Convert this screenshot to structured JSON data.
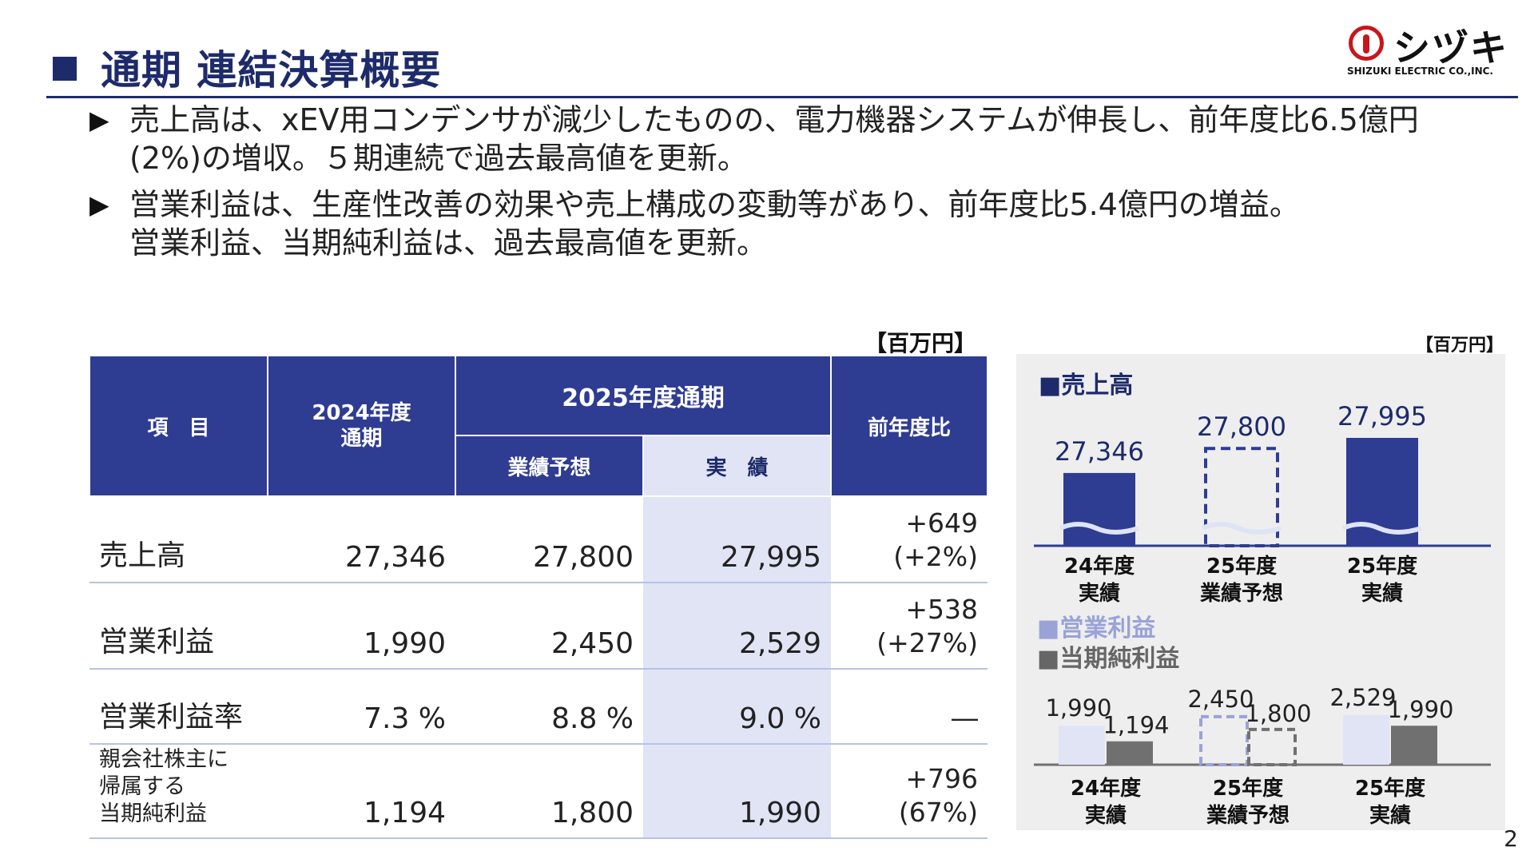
{
  "header": {
    "title": "通期 連結決算概要",
    "logo_brand": "シヅキ",
    "logo_sub": "SHIZUKI ELECTRIC CO.,INC."
  },
  "bullets": [
    {
      "marker": "▶",
      "lines": [
        "売上高は、xEV用コンデンサが減少したものの、電力機器システムが伸長し、前年度比6.5億円",
        "(2%)の増収。５期連続で過去最高値を更新。"
      ]
    },
    {
      "marker": "▶",
      "lines": [
        "営業利益は、生産性改善の効果や売上構成の変動等があり、前年度比5.4億円の増益。",
        "営業利益、当期純利益は、過去最高値を更新。"
      ]
    }
  ],
  "table": {
    "unit": "【百万円】",
    "headers": {
      "item": "項　目",
      "fy2024": "2024年度\n通期",
      "fy2025": "2025年度通期",
      "forecast": "業績予想",
      "actual": "実　績",
      "yoy": "前年度比"
    },
    "rows": [
      {
        "label": "売上高",
        "fy2024": "27,346",
        "forecast": "27,800",
        "actual": "27,995",
        "yoy": [
          "+649",
          "(+2%)"
        ]
      },
      {
        "label": "営業利益",
        "fy2024": "1,990",
        "forecast": "2,450",
        "actual": "2,529",
        "yoy": [
          "+538",
          "(+27%)"
        ]
      },
      {
        "label": "営業利益率",
        "fy2024": "7.3 %",
        "forecast": "8.8 %",
        "actual": "9.0 %",
        "yoy": [
          "―"
        ]
      },
      {
        "label": "親会社株主に\n帰属する\n当期純利益",
        "fy2024": "1,194",
        "forecast": "1,800",
        "actual": "1,990",
        "yoy": [
          "+796",
          "(67%)"
        ]
      }
    ]
  },
  "chart_panel": {
    "unit": "【百万円】",
    "colors": {
      "navy": "#2e3c92",
      "light": "#e0e4f5",
      "gray": "#707070",
      "legend_light": "#9aa3d6"
    }
  },
  "chart_data": [
    {
      "type": "bar",
      "title": "■売上高",
      "categories": [
        "24年度\n実績",
        "25年度\n業績予想",
        "25年度\n実績"
      ],
      "series": [
        {
          "name": "売上高",
          "values": [
            27346,
            27800,
            27995
          ],
          "labels": [
            "27,346",
            "27,800",
            "27,995"
          ]
        }
      ],
      "forecast_style": "dashed-outline",
      "axis_break": true
    },
    {
      "type": "bar",
      "categories": [
        "24年度\n実績",
        "25年度\n業績予想",
        "25年度\n実績"
      ],
      "series": [
        {
          "name": "■営業利益",
          "values": [
            1990,
            2450,
            2529
          ],
          "labels": [
            "1,990",
            "2,450",
            "2,529"
          ]
        },
        {
          "name": "■当期純利益",
          "values": [
            1194,
            1800,
            1990
          ],
          "labels": [
            "1,194",
            "1,800",
            "1,990"
          ]
        }
      ],
      "forecast_style": "dashed-outline"
    }
  ],
  "page_number": "2"
}
